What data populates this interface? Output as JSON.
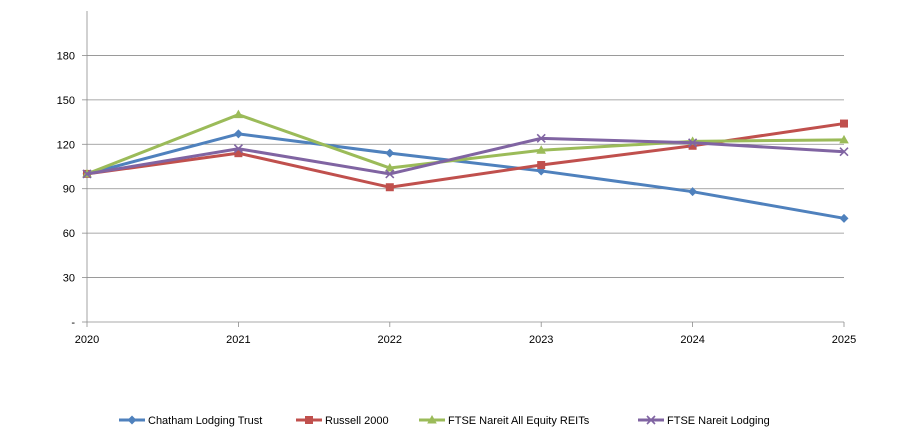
{
  "chart_data": {
    "type": "line",
    "title": "",
    "xlabel": "",
    "ylabel": "",
    "x": [
      "2020",
      "2021",
      "2022",
      "2023",
      "2024",
      "2025"
    ],
    "ylim": [
      0,
      210
    ],
    "yticks": [
      0,
      30,
      60,
      90,
      120,
      150,
      180
    ],
    "ytick_labels": [
      "-",
      "30",
      "60",
      "90",
      "120",
      "150",
      "180"
    ],
    "grid": "horizontal",
    "legend_position": "bottom",
    "series": [
      {
        "name": "Chatham Lodging Trust",
        "color": "#4F81BD",
        "marker": "diamond",
        "values": [
          100,
          127,
          114,
          102,
          88,
          70
        ]
      },
      {
        "name": "Russell 2000",
        "color": "#C0504D",
        "marker": "square",
        "values": [
          100,
          114,
          91,
          106,
          119,
          134
        ]
      },
      {
        "name": "FTSE Nareit All Equity REITs",
        "color": "#9BBB59",
        "marker": "triangle",
        "values": [
          100,
          140,
          104,
          116,
          122,
          123
        ]
      },
      {
        "name": "FTSE Nareit Lodging",
        "color": "#8064A2",
        "marker": "x",
        "values": [
          100,
          117,
          100,
          124,
          121,
          115
        ]
      }
    ]
  }
}
